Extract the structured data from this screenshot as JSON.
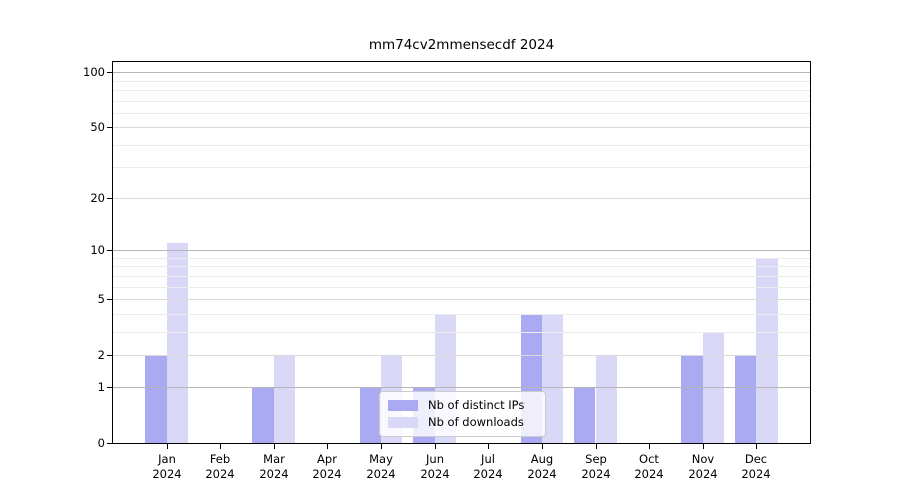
{
  "title": "mm74cv2mmensecdf 2024",
  "chart_data": {
    "type": "bar",
    "title": "mm74cv2mmensecdf 2024",
    "categories": [
      "Jan",
      "Feb",
      "Mar",
      "Apr",
      "May",
      "Jun",
      "Jul",
      "Aug",
      "Sep",
      "Oct",
      "Nov",
      "Dec"
    ],
    "year": "2024",
    "series": [
      {
        "name": "Nb of distinct IPs",
        "color": "#aaaaf2",
        "values": [
          2,
          0,
          1,
          0,
          1,
          1,
          0,
          4,
          1,
          0,
          2,
          2
        ]
      },
      {
        "name": "Nb of downloads",
        "color": "#d9d9f7",
        "values": [
          11,
          0,
          2,
          0,
          2,
          4,
          0,
          4,
          2,
          0,
          3,
          9
        ]
      }
    ],
    "ylabel": "",
    "xlabel": "",
    "y_scale": "log10(1+value)",
    "ylim": [
      0,
      113
    ],
    "y_ticks": [
      {
        "value": 0,
        "label": "0"
      },
      {
        "value": 1,
        "label": "1"
      },
      {
        "value": 2,
        "label": "2"
      },
      {
        "value": 5,
        "label": "5"
      },
      {
        "value": 10,
        "label": "10"
      },
      {
        "value": 20,
        "label": "20"
      },
      {
        "value": 50,
        "label": "50"
      },
      {
        "value": 100,
        "label": "100"
      }
    ],
    "grid": {
      "major_values": [
        1,
        10,
        100
      ],
      "mid_values": [
        2,
        5,
        20,
        50
      ],
      "minor_values": [
        3,
        4,
        6,
        7,
        8,
        9,
        30,
        40,
        60,
        70,
        80,
        90
      ],
      "major_color": "#b5b5b5",
      "mid_color": "#dbdbdb",
      "minor_color": "#ececec"
    },
    "legend_position": "lower center",
    "axis_color": "#000000",
    "background_color": "#ffffff"
  },
  "legend": {
    "items": [
      {
        "label": "Nb of distinct IPs"
      },
      {
        "label": "Nb of downloads"
      }
    ]
  }
}
